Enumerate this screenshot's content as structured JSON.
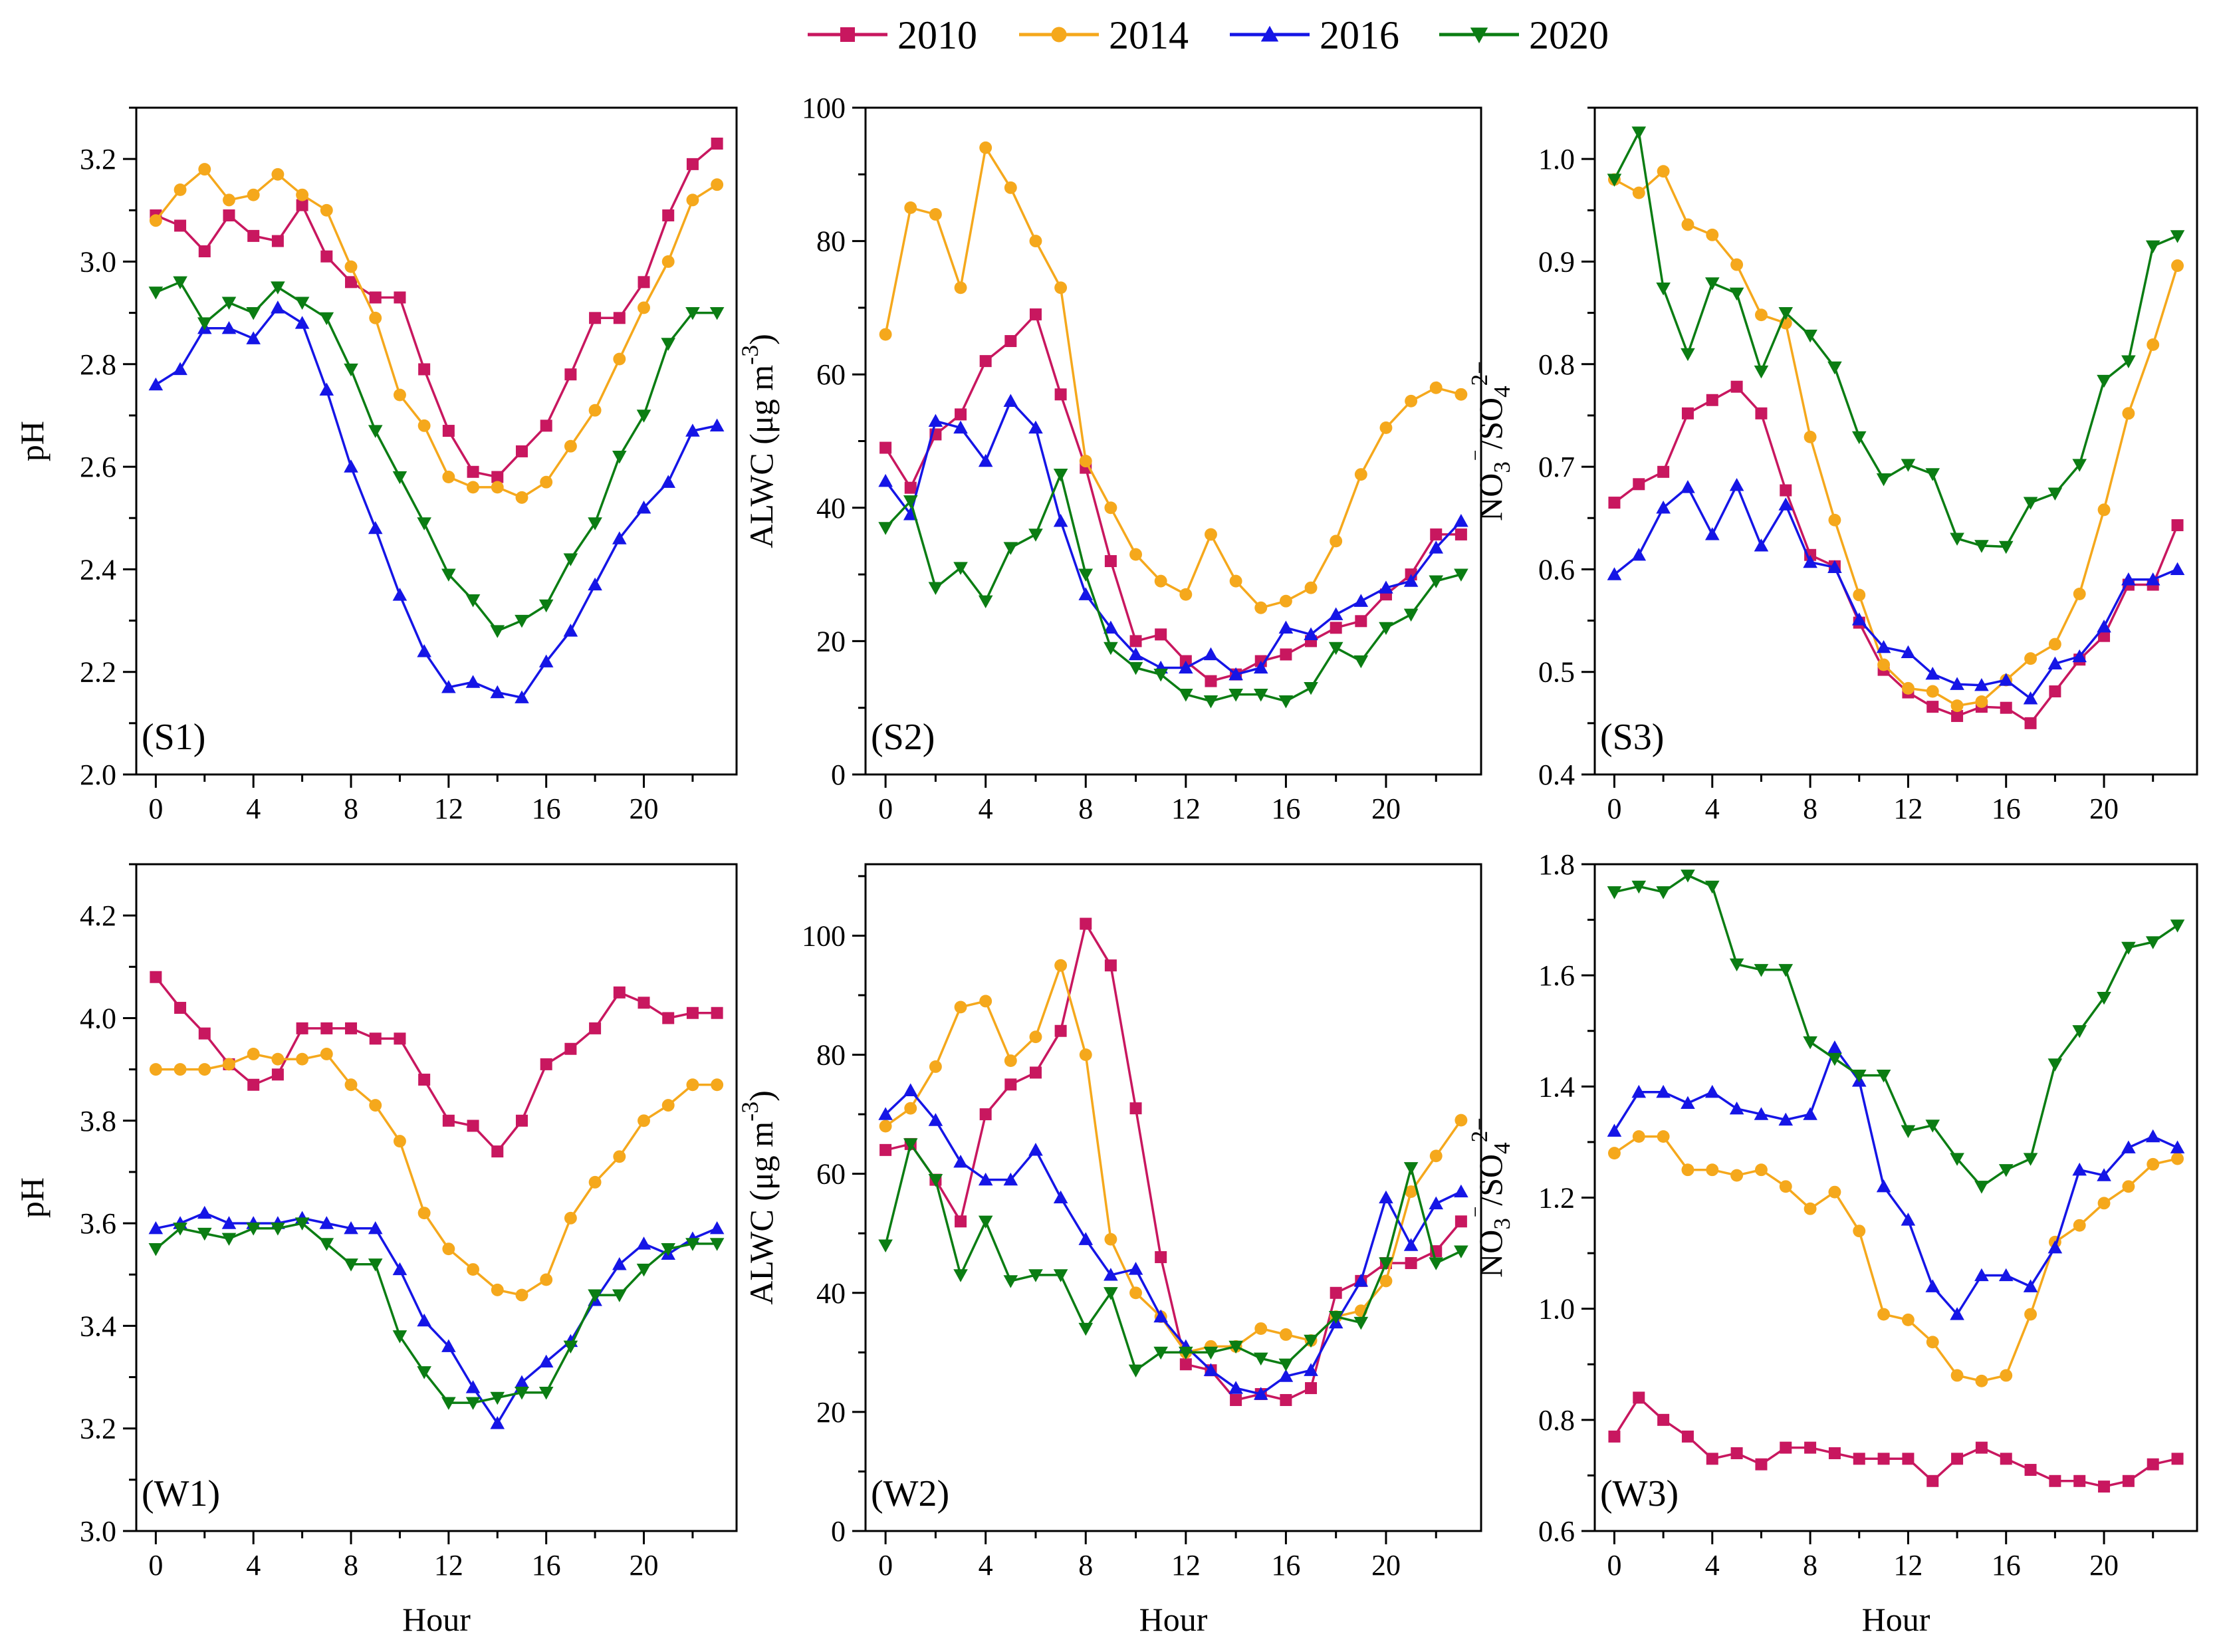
{
  "legend": [
    "2010",
    "2014",
    "2016",
    "2020"
  ],
  "colors": {
    "2010": "#c8175f",
    "2014": "#f5a81c",
    "2016": "#1515e6",
    "2020": "#0b7d13"
  },
  "markers": {
    "2010": "square",
    "2014": "circle",
    "2016": "triangle-up",
    "2020": "triangle-down"
  },
  "chart_data": [
    {
      "id": "S1",
      "label": "(S1)",
      "type": "line",
      "xlabel": "",
      "ylabel": "pH",
      "xlim": [
        -0.8,
        23.8
      ],
      "xticks": [
        0,
        4,
        8,
        12,
        16,
        20
      ],
      "ylim": [
        2.0,
        3.3
      ],
      "yticks": [
        "2.0",
        "2.2",
        "2.4",
        "2.6",
        "2.8",
        "3.0",
        "3.2"
      ],
      "x": [
        0,
        1,
        2,
        3,
        4,
        5,
        6,
        7,
        8,
        9,
        10,
        11,
        12,
        13,
        14,
        15,
        16,
        17,
        18,
        19,
        20,
        21,
        22,
        23
      ],
      "series": [
        {
          "name": "2010",
          "values": [
            3.09,
            3.07,
            3.02,
            3.09,
            3.05,
            3.04,
            3.11,
            3.01,
            2.96,
            2.93,
            2.93,
            2.79,
            2.67,
            2.59,
            2.58,
            2.63,
            2.68,
            2.78,
            2.89,
            2.89,
            2.96,
            3.09,
            3.19,
            3.23
          ]
        },
        {
          "name": "2014",
          "values": [
            3.08,
            3.14,
            3.18,
            3.12,
            3.13,
            3.17,
            3.13,
            3.1,
            2.99,
            2.89,
            2.74,
            2.68,
            2.58,
            2.56,
            2.56,
            2.54,
            2.57,
            2.64,
            2.71,
            2.81,
            2.91,
            3.0,
            3.12,
            3.15
          ]
        },
        {
          "name": "2016",
          "values": [
            2.76,
            2.79,
            2.87,
            2.87,
            2.85,
            2.91,
            2.88,
            2.75,
            2.6,
            2.48,
            2.35,
            2.24,
            2.17,
            2.18,
            2.16,
            2.15,
            2.22,
            2.28,
            2.37,
            2.46,
            2.52,
            2.57,
            2.67,
            2.68
          ]
        },
        {
          "name": "2020",
          "values": [
            2.94,
            2.96,
            2.88,
            2.92,
            2.9,
            2.95,
            2.92,
            2.89,
            2.79,
            2.67,
            2.58,
            2.49,
            2.39,
            2.34,
            2.28,
            2.3,
            2.33,
            2.42,
            2.49,
            2.62,
            2.7,
            2.84,
            2.9,
            2.9
          ]
        }
      ]
    },
    {
      "id": "S2",
      "label": "(S2)",
      "type": "line",
      "xlabel": "",
      "ylabel": "ALWC (μg m⁻³)",
      "ylabel_main": "ALWC (μg m",
      "ylabel_sup": "-3",
      "ylabel_end": ")",
      "xlim": [
        -0.8,
        23.8
      ],
      "xticks": [
        0,
        4,
        8,
        12,
        16,
        20
      ],
      "ylim": [
        0,
        100
      ],
      "yticks": [
        "0",
        "20",
        "40",
        "60",
        "80",
        "100"
      ],
      "x": [
        0,
        1,
        2,
        3,
        4,
        5,
        6,
        7,
        8,
        9,
        10,
        11,
        12,
        13,
        14,
        15,
        16,
        17,
        18,
        19,
        20,
        21,
        22,
        23
      ],
      "series": [
        {
          "name": "2010",
          "values": [
            49,
            43,
            51,
            54,
            62,
            65,
            69,
            57,
            46,
            32,
            20,
            21,
            17,
            14,
            15,
            17,
            18,
            20,
            22,
            23,
            27,
            30,
            36,
            36
          ]
        },
        {
          "name": "2014",
          "values": [
            66,
            85,
            84,
            73,
            94,
            88,
            80,
            73,
            47,
            40,
            33,
            29,
            27,
            36,
            29,
            25,
            26,
            28,
            35,
            45,
            52,
            56,
            58,
            57
          ]
        },
        {
          "name": "2016",
          "values": [
            44,
            39,
            53,
            52,
            47,
            56,
            52,
            38,
            27,
            22,
            18,
            16,
            16,
            18,
            15,
            16,
            22,
            21,
            24,
            26,
            28,
            29,
            34,
            38
          ]
        },
        {
          "name": "2020",
          "values": [
            37,
            41,
            28,
            31,
            26,
            34,
            36,
            45,
            30,
            19,
            16,
            15,
            12,
            11,
            12,
            12,
            11,
            13,
            19,
            17,
            22,
            24,
            29,
            30
          ]
        }
      ]
    },
    {
      "id": "S3",
      "label": "(S3)",
      "type": "line",
      "xlabel": "",
      "ylabel": "NO₃⁻/SO₄²⁻",
      "ylabel_parts": [
        "NO",
        "3",
        "⁻",
        "/SO",
        "4",
        "2−"
      ],
      "xlim": [
        -0.8,
        23.8
      ],
      "xticks": [
        0,
        4,
        8,
        12,
        16,
        20
      ],
      "ylim": [
        0.4,
        1.05
      ],
      "yticks": [
        "0.4",
        "0.5",
        "0.6",
        "0.7",
        "0.8",
        "0.9",
        "1.0"
      ],
      "x": [
        0,
        1,
        2,
        3,
        4,
        5,
        6,
        7,
        8,
        9,
        10,
        11,
        12,
        13,
        14,
        15,
        16,
        17,
        18,
        19,
        20,
        21,
        22,
        23
      ],
      "series": [
        {
          "name": "2010",
          "values": [
            0.665,
            0.683,
            0.695,
            0.752,
            0.765,
            0.778,
            0.752,
            0.677,
            0.614,
            0.603,
            0.548,
            0.502,
            0.48,
            0.466,
            0.457,
            0.466,
            0.465,
            0.45,
            0.481,
            0.512,
            0.535,
            0.585,
            0.585,
            0.643
          ]
        },
        {
          "name": "2014",
          "values": [
            0.98,
            0.967,
            0.988,
            0.936,
            0.926,
            0.897,
            0.848,
            0.84,
            0.729,
            0.648,
            0.575,
            0.507,
            0.484,
            0.481,
            0.467,
            0.471,
            0.492,
            0.513,
            0.527,
            0.576,
            0.658,
            0.752,
            0.819,
            0.896
          ]
        },
        {
          "name": "2016",
          "values": [
            0.595,
            0.614,
            0.66,
            0.68,
            0.634,
            0.682,
            0.623,
            0.663,
            0.607,
            0.602,
            0.551,
            0.524,
            0.519,
            0.498,
            0.488,
            0.487,
            0.492,
            0.474,
            0.508,
            0.515,
            0.544,
            0.59,
            0.59,
            0.6
          ]
        },
        {
          "name": "2020",
          "values": [
            0.98,
            1.026,
            0.874,
            0.81,
            0.879,
            0.869,
            0.793,
            0.85,
            0.828,
            0.797,
            0.729,
            0.688,
            0.702,
            0.693,
            0.63,
            0.623,
            0.622,
            0.665,
            0.674,
            0.702,
            0.784,
            0.803,
            0.915,
            0.925
          ]
        }
      ]
    },
    {
      "id": "W1",
      "label": "(W1)",
      "type": "line",
      "xlabel": "Hour",
      "ylabel": "pH",
      "xlim": [
        -0.8,
        23.8
      ],
      "xticks": [
        0,
        4,
        8,
        12,
        16,
        20
      ],
      "ylim": [
        3.0,
        4.3
      ],
      "yticks": [
        "3.0",
        "3.2",
        "3.4",
        "3.6",
        "3.8",
        "4.0",
        "4.2"
      ],
      "x": [
        0,
        1,
        2,
        3,
        4,
        5,
        6,
        7,
        8,
        9,
        10,
        11,
        12,
        13,
        14,
        15,
        16,
        17,
        18,
        19,
        20,
        21,
        22,
        23
      ],
      "series": [
        {
          "name": "2010",
          "values": [
            4.08,
            4.02,
            3.97,
            3.91,
            3.87,
            3.89,
            3.98,
            3.98,
            3.98,
            3.96,
            3.96,
            3.88,
            3.8,
            3.79,
            3.74,
            3.8,
            3.91,
            3.94,
            3.98,
            4.05,
            4.03,
            4.0,
            4.01,
            4.01
          ]
        },
        {
          "name": "2014",
          "values": [
            3.9,
            3.9,
            3.9,
            3.91,
            3.93,
            3.92,
            3.92,
            3.93,
            3.87,
            3.83,
            3.76,
            3.62,
            3.55,
            3.51,
            3.47,
            3.46,
            3.49,
            3.61,
            3.68,
            3.73,
            3.8,
            3.83,
            3.87,
            3.87
          ]
        },
        {
          "name": "2016",
          "values": [
            3.59,
            3.6,
            3.62,
            3.6,
            3.6,
            3.6,
            3.61,
            3.6,
            3.59,
            3.59,
            3.51,
            3.41,
            3.36,
            3.28,
            3.21,
            3.29,
            3.33,
            3.37,
            3.45,
            3.52,
            3.56,
            3.54,
            3.57,
            3.59
          ]
        },
        {
          "name": "2020",
          "values": [
            3.55,
            3.59,
            3.58,
            3.57,
            3.59,
            3.59,
            3.6,
            3.56,
            3.52,
            3.52,
            3.38,
            3.31,
            3.25,
            3.25,
            3.26,
            3.27,
            3.27,
            3.36,
            3.46,
            3.46,
            3.51,
            3.55,
            3.56,
            3.56
          ]
        }
      ]
    },
    {
      "id": "W2",
      "label": "(W2)",
      "type": "line",
      "xlabel": "Hour",
      "ylabel": "ALWC (μg m⁻³)",
      "ylabel_main": "ALWC (μg m",
      "ylabel_sup": "-3",
      "ylabel_end": ")",
      "xlim": [
        -0.8,
        23.8
      ],
      "xticks": [
        0,
        4,
        8,
        12,
        16,
        20
      ],
      "ylim": [
        0,
        112
      ],
      "yticks": [
        "0",
        "20",
        "40",
        "60",
        "80",
        "100"
      ],
      "x": [
        0,
        1,
        2,
        3,
        4,
        5,
        6,
        7,
        8,
        9,
        10,
        11,
        12,
        13,
        14,
        15,
        16,
        17,
        18,
        19,
        20,
        21,
        22,
        23
      ],
      "series": [
        {
          "name": "2010",
          "values": [
            64,
            65,
            59,
            52,
            70,
            75,
            77,
            84,
            102,
            95,
            71,
            46,
            28,
            27,
            22,
            23,
            22,
            24,
            40,
            42,
            45,
            45,
            47,
            52
          ]
        },
        {
          "name": "2014",
          "values": [
            68,
            71,
            78,
            88,
            89,
            79,
            83,
            95,
            80,
            49,
            40,
            36,
            30,
            31,
            31,
            34,
            33,
            32,
            36,
            37,
            42,
            57,
            63,
            69
          ]
        },
        {
          "name": "2016",
          "values": [
            70,
            74,
            69,
            62,
            59,
            59,
            64,
            56,
            49,
            43,
            44,
            36,
            31,
            27,
            24,
            23,
            26,
            27,
            35,
            42,
            56,
            48,
            55,
            57
          ]
        },
        {
          "name": "2020",
          "values": [
            48,
            65,
            59,
            43,
            52,
            42,
            43,
            43,
            34,
            40,
            27,
            30,
            30,
            30,
            31,
            29,
            28,
            32,
            36,
            35,
            45,
            61,
            45,
            47
          ]
        }
      ]
    },
    {
      "id": "W3",
      "label": "(W3)",
      "type": "line",
      "xlabel": "Hour",
      "ylabel": "NO₃⁻/SO₄²⁻",
      "ylabel_parts": [
        "NO",
        "3",
        "⁻",
        "/SO",
        "4",
        "2−"
      ],
      "xlim": [
        -0.8,
        23.8
      ],
      "xticks": [
        0,
        4,
        8,
        12,
        16,
        20
      ],
      "ylim": [
        0.6,
        1.8
      ],
      "yticks": [
        "0.6",
        "0.8",
        "1.0",
        "1.2",
        "1.4",
        "1.6",
        "1.8"
      ],
      "x": [
        0,
        1,
        2,
        3,
        4,
        5,
        6,
        7,
        8,
        9,
        10,
        11,
        12,
        13,
        14,
        15,
        16,
        17,
        18,
        19,
        20,
        21,
        22,
        23
      ],
      "series": [
        {
          "name": "2010",
          "values": [
            0.77,
            0.84,
            0.8,
            0.77,
            0.73,
            0.74,
            0.72,
            0.75,
            0.75,
            0.74,
            0.73,
            0.73,
            0.73,
            0.69,
            0.73,
            0.75,
            0.73,
            0.71,
            0.69,
            0.69,
            0.68,
            0.69,
            0.72,
            0.73
          ]
        },
        {
          "name": "2014",
          "values": [
            1.28,
            1.31,
            1.31,
            1.25,
            1.25,
            1.24,
            1.25,
            1.22,
            1.18,
            1.21,
            1.14,
            0.99,
            0.98,
            0.94,
            0.88,
            0.87,
            0.88,
            0.99,
            1.12,
            1.15,
            1.19,
            1.22,
            1.26,
            1.27
          ]
        },
        {
          "name": "2016",
          "values": [
            1.32,
            1.39,
            1.39,
            1.37,
            1.39,
            1.36,
            1.35,
            1.34,
            1.35,
            1.47,
            1.41,
            1.22,
            1.16,
            1.04,
            0.99,
            1.06,
            1.06,
            1.04,
            1.11,
            1.25,
            1.24,
            1.29,
            1.31,
            1.29
          ]
        },
        {
          "name": "2020",
          "values": [
            1.75,
            1.76,
            1.75,
            1.78,
            1.76,
            1.62,
            1.61,
            1.61,
            1.48,
            1.45,
            1.42,
            1.42,
            1.32,
            1.33,
            1.27,
            1.22,
            1.25,
            1.27,
            1.44,
            1.5,
            1.56,
            1.65,
            1.66,
            1.69
          ]
        }
      ]
    }
  ]
}
